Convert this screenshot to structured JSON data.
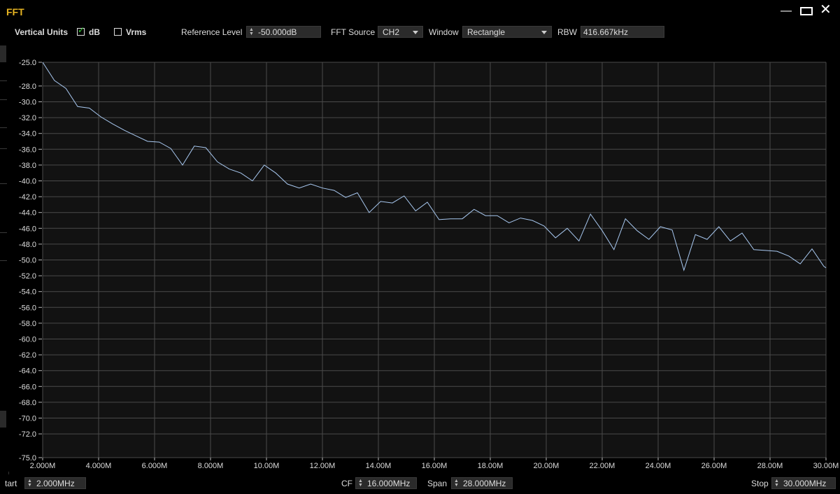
{
  "window": {
    "title": "FFT",
    "minimize_icon": "minimize-icon",
    "maximize_icon": "maximize-icon",
    "close_icon": "close-icon"
  },
  "toolbar": {
    "vertical_units_label": "Vertical Units",
    "db_label": "dB",
    "db_checked": true,
    "vrms_label": "Vrms",
    "vrms_checked": false,
    "reference_level_label": "Reference Level",
    "reference_level_value": "-50.000dB",
    "fft_source_label": "FFT Source",
    "fft_source_value": "CH2",
    "window_label": "Window",
    "window_value": "Rectangle",
    "rbw_label": "RBW",
    "rbw_value": "416.667kHz"
  },
  "bottom": {
    "start_label": "tart",
    "start_value": "2.000MHz",
    "cf_label": "CF",
    "cf_value": "16.000MHz",
    "span_label": "Span",
    "span_value": "28.000MHz",
    "stop_label": "Stop",
    "stop_value": "30.000MHz"
  },
  "colors": {
    "trace": "#a8c8f0",
    "title": "#e6b422",
    "check": "#35d435",
    "plot_bg": "#121212",
    "grid": "#4a4a4a"
  },
  "chart_data": {
    "type": "line",
    "title": "",
    "xlabel": "",
    "ylabel": "",
    "xlim": [
      2,
      30
    ],
    "ylim": [
      -75,
      -25
    ],
    "grid": true,
    "x_ticks": [
      2,
      4,
      6,
      8,
      10,
      12,
      14,
      16,
      18,
      20,
      22,
      24,
      26,
      28,
      30
    ],
    "x_tick_labels": [
      "2.000M",
      "4.000M",
      "6.000M",
      "8.000M",
      "10.00M",
      "12.00M",
      "14.00M",
      "16.00M",
      "18.00M",
      "20.00M",
      "22.00M",
      "24.00M",
      "26.00M",
      "28.00M",
      "30.00M"
    ],
    "y_ticks": [
      -25,
      -28,
      -30,
      -32,
      -34,
      -36,
      -38,
      -40,
      -42,
      -44,
      -46,
      -48,
      -50,
      -52,
      -54,
      -56,
      -58,
      -60,
      -62,
      -64,
      -66,
      -68,
      -70,
      -72,
      -75
    ],
    "y_tick_labels": [
      "-25.0",
      "-28.0",
      "-30.0",
      "-32.0",
      "-34.0",
      "-36.0",
      "-38.0",
      "-40.0",
      "-42.0",
      "-44.0",
      "-46.0",
      "-48.0",
      "-50.0",
      "-52.0",
      "-54.0",
      "-56.0",
      "-58.0",
      "-60.0",
      "-62.0",
      "-64.0",
      "-66.0",
      "-68.0",
      "-70.0",
      "-72.0",
      "-75.0"
    ],
    "series": [
      {
        "x": [
          2.0,
          2.42,
          2.83,
          3.25,
          3.67,
          4.08,
          4.5,
          4.92,
          5.33,
          5.75,
          6.17,
          6.58,
          7.0,
          7.42,
          7.83,
          8.25,
          8.67,
          9.08,
          9.5,
          9.92,
          10.33,
          10.75,
          11.17,
          11.58,
          12.0,
          12.42,
          12.83,
          13.25,
          13.67,
          14.08,
          14.5,
          14.92,
          15.33,
          15.75,
          16.17,
          16.58,
          17.0,
          17.42,
          17.83,
          18.25,
          18.67,
          19.08,
          19.5,
          19.92,
          20.33,
          20.75,
          21.17,
          21.58,
          22.0,
          22.42,
          22.83,
          23.25,
          23.67,
          24.08,
          24.5,
          24.92,
          25.33,
          25.75,
          26.17,
          26.58,
          27.0,
          27.42,
          27.83,
          28.25,
          28.67,
          29.08,
          29.5,
          29.92,
          30.0
        ],
        "y": [
          -25.0,
          -27.3,
          -28.3,
          -30.6,
          -30.8,
          -31.9,
          -32.8,
          -33.6,
          -34.3,
          -35.0,
          -35.1,
          -35.9,
          -38.0,
          -35.6,
          -35.8,
          -37.6,
          -38.5,
          -39.0,
          -40.0,
          -38.0,
          -39.0,
          -40.4,
          -40.9,
          -40.4,
          -40.9,
          -41.2,
          -42.1,
          -41.5,
          -44.0,
          -42.6,
          -42.8,
          -41.9,
          -43.8,
          -42.7,
          -44.9,
          -44.8,
          -44.8,
          -43.6,
          -44.4,
          -44.4,
          -45.3,
          -44.7,
          -45.0,
          -45.7,
          -47.2,
          -46.0,
          -47.6,
          -44.2,
          -46.3,
          -48.7,
          -44.8,
          -46.3,
          -47.4,
          -45.8,
          -46.2,
          -51.3,
          -46.8,
          -47.4,
          -45.8,
          -47.6,
          -46.6,
          -48.7,
          -48.8,
          -48.9,
          -49.5,
          -50.5,
          -48.6,
          -50.8,
          -51.0
        ]
      }
    ]
  }
}
